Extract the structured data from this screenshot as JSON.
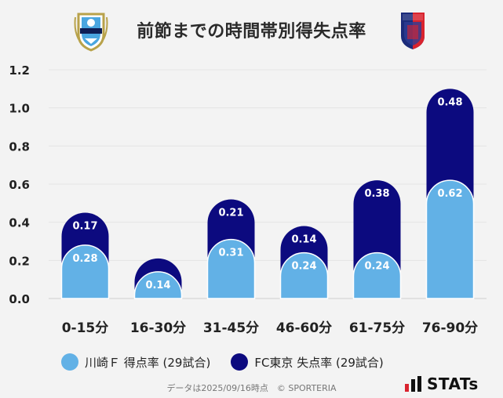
{
  "title": "前節までの時間帯別得失点率",
  "logos": {
    "left_team": {
      "name": "Kawasaki Frontale crest",
      "text": "KAWASAKI",
      "color_main": "#4aa6e0",
      "color_trim": "#b8a24a"
    },
    "right_team": {
      "name": "FC Tokyo crest",
      "text": "FC TOKYO",
      "color_main": "#1b2b7a",
      "color_trim": "#d9232e"
    }
  },
  "chart_data": {
    "type": "bar",
    "stacked": true,
    "categories": [
      "0-15分",
      "16-30分",
      "31-45分",
      "46-60分",
      "61-75分",
      "76-90分"
    ],
    "series": [
      {
        "name": "川崎Ｆ 得点率 (29試合)",
        "color": "#62b1e6",
        "values": [
          0.28,
          0.14,
          0.31,
          0.24,
          0.24,
          0.62
        ]
      },
      {
        "name": "FC東京 失点率 (29試合)",
        "color": "#0c0a7f",
        "values": [
          0.17,
          0.07,
          0.21,
          0.14,
          0.38,
          0.48
        ]
      }
    ],
    "data_labels": [
      [
        "0.28",
        "0.14",
        "0.31",
        "0.24",
        "0.24",
        "0.62"
      ],
      [
        "0.17",
        "",
        "0.21",
        "0.14",
        "0.38",
        "0.48"
      ]
    ],
    "y_ticks": [
      "0.0",
      "0.2",
      "0.4",
      "0.6",
      "0.8",
      "1.0",
      "1.2"
    ],
    "ylim": [
      0,
      1.2
    ],
    "grid": true,
    "legend_position": "bottom"
  },
  "legend": {
    "items": [
      {
        "label": "川崎Ｆ 得点率 (29試合)",
        "color": "#62b1e6"
      },
      {
        "label": "FC東京 失点率 (29試合)",
        "color": "#0c0a7f"
      }
    ]
  },
  "footnote": "データは2025/09/16時点　© SPORTERIA",
  "brand": {
    "text": "STATs",
    "accent": "#d9232e"
  }
}
